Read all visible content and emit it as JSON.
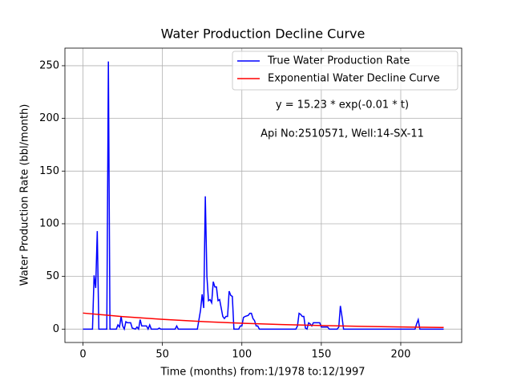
{
  "chart_data": {
    "type": "line",
    "title": "Water Production Decline Curve",
    "x_label": "Time (months) from:1/1978 to:12/1997",
    "y_label": "Water Production Rate (bbl/month)",
    "annotations": [
      "y = 15.23 * exp(-0.01 * t)",
      "Api No:2510571, Well:14-SX-11"
    ],
    "xlim": [
      -11.35,
      238.35
    ],
    "ylim": [
      -12.7,
      266.7
    ],
    "xticks": [
      0,
      50,
      100,
      150,
      200
    ],
    "yticks": [
      0,
      50,
      100,
      150,
      200,
      250
    ],
    "grid": true,
    "legend": "upper right",
    "series": [
      {
        "name": "True Water Production Rate",
        "color": "#0000ff",
        "x": [
          0,
          6,
          7,
          8,
          9,
          10,
          15,
          16,
          17,
          21,
          22,
          23,
          24,
          25,
          26,
          27,
          28,
          30,
          31,
          33,
          34,
          35,
          36,
          37,
          40,
          41,
          42,
          43,
          47,
          48,
          49,
          58,
          59,
          60,
          72,
          74,
          75,
          76,
          77,
          78,
          79,
          80,
          81,
          82,
          83,
          84,
          85,
          86,
          87,
          88,
          89,
          90,
          91,
          92,
          93,
          94,
          95,
          98,
          99,
          100,
          101,
          102,
          104,
          105,
          106,
          107,
          108,
          109,
          110,
          111,
          134,
          135,
          136,
          137,
          138,
          139,
          140,
          141,
          142,
          143,
          144,
          145,
          148,
          149,
          150,
          154,
          155,
          160,
          161,
          162,
          163,
          164,
          209,
          210,
          211,
          212,
          227
        ],
        "values": [
          0,
          0,
          51,
          39,
          93,
          0,
          0,
          254,
          0,
          0,
          4,
          2,
          12,
          3,
          0,
          7,
          6,
          6,
          1,
          0,
          2,
          0,
          9,
          3,
          3,
          0,
          4,
          0,
          0,
          1,
          0,
          0,
          3,
          0,
          0,
          18,
          33,
          20,
          126,
          50,
          27,
          28,
          25,
          45,
          40,
          40,
          27,
          28,
          20,
          12,
          10,
          12,
          12,
          36,
          32,
          31,
          0,
          0,
          3,
          3,
          11,
          12,
          13,
          15,
          15,
          10,
          8,
          3,
          3,
          0,
          0,
          3,
          15,
          14,
          12,
          12,
          1,
          0,
          6,
          5,
          3,
          6,
          6,
          6,
          2,
          2,
          0,
          0,
          2,
          22,
          12,
          0,
          0,
          5,
          9,
          0,
          0
        ]
      },
      {
        "name": "Exponential Water Decline Curve",
        "color": "#ff0000",
        "x": [
          0,
          25,
          50,
          75,
          100,
          125,
          150,
          175,
          200,
          225,
          227
        ],
        "values": [
          15.23,
          11.86,
          9.24,
          7.19,
          5.6,
          4.36,
          3.4,
          2.65,
          2.06,
          1.61,
          1.57
        ]
      }
    ]
  }
}
